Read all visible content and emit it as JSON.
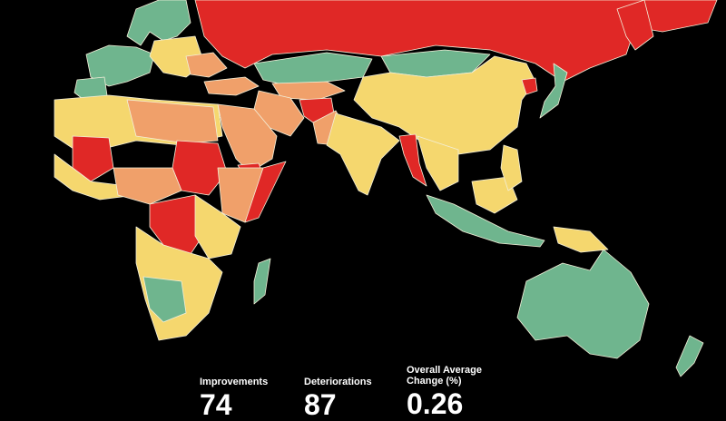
{
  "stats": [
    {
      "label": "Improvements",
      "value": "74"
    },
    {
      "label": "Deteriorations",
      "value": "87"
    },
    {
      "label": "Overall Average Change (%)",
      "value": "0.26"
    }
  ]
}
